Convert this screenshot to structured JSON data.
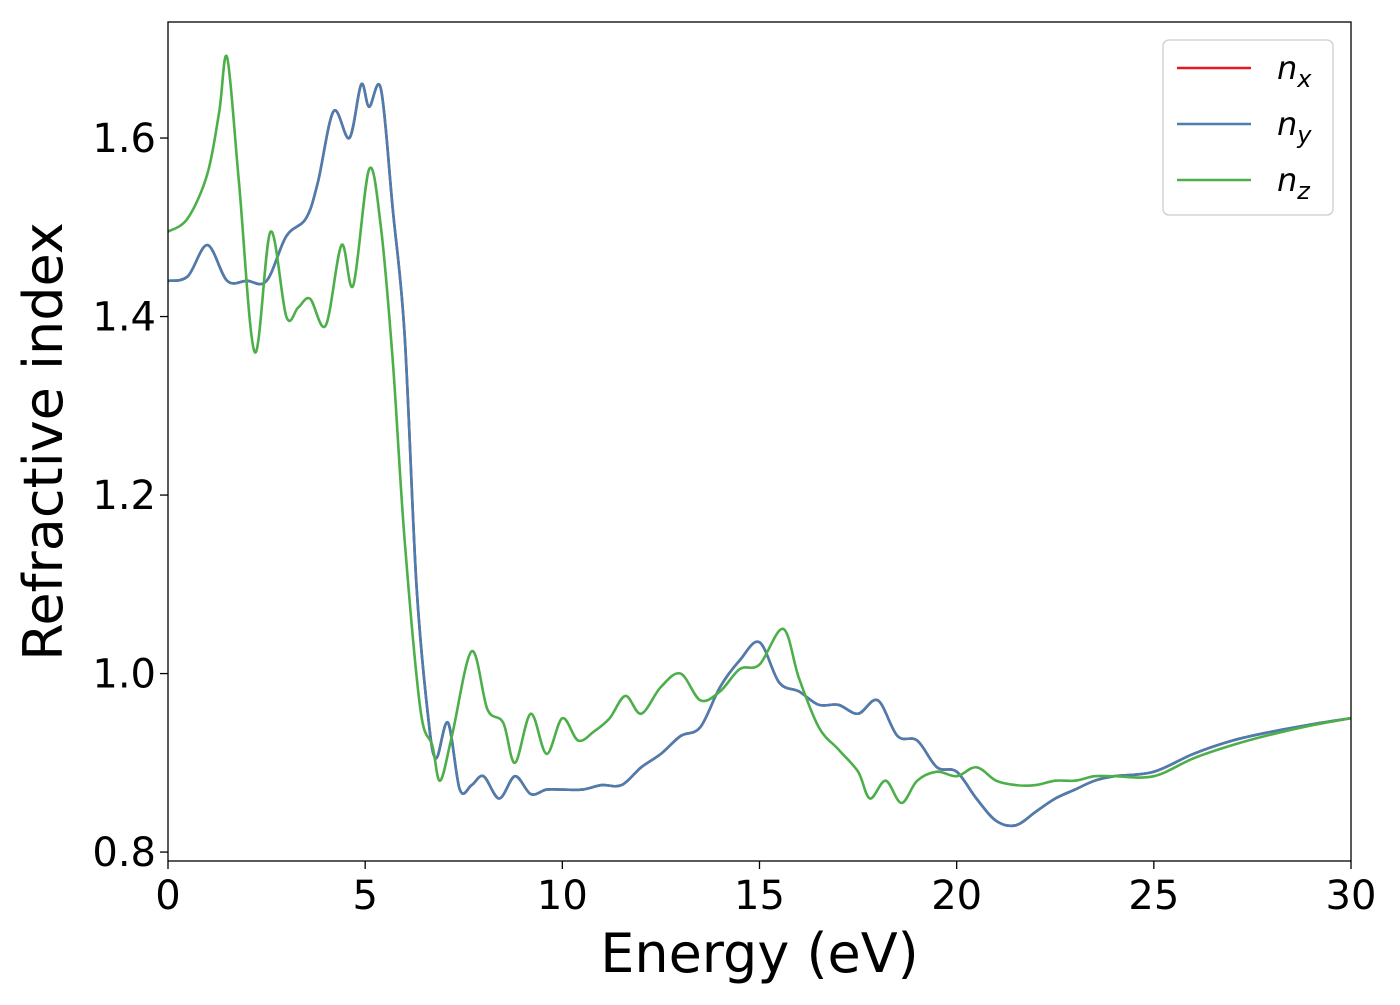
{
  "chart_data": {
    "type": "line",
    "title": "",
    "xlabel": "Energy (eV)",
    "ylabel": "Refractive index",
    "xlim": [
      0,
      30
    ],
    "ylim": [
      0.79,
      1.73
    ],
    "xticks": [
      0,
      5,
      10,
      15,
      20,
      25,
      30
    ],
    "xtick_labels": [
      "0",
      "5",
      "10",
      "15",
      "20",
      "25",
      "30"
    ],
    "yticks": [
      0.8,
      1.0,
      1.2,
      1.4,
      1.6
    ],
    "ytick_labels": [
      "0.8",
      "1.0",
      "1.2",
      "1.4",
      "1.6"
    ],
    "grid": false,
    "legend_position": "top-right",
    "series": [
      {
        "name": "n",
        "subscript": "x",
        "color": "#e41a1c",
        "x": [
          0,
          0.5,
          1.0,
          1.5,
          2.0,
          2.5,
          3.0,
          3.5,
          3.8,
          4.2,
          4.6,
          4.9,
          5.1,
          5.4,
          5.7,
          6.0,
          6.3,
          6.6,
          6.8,
          7.1,
          7.4,
          7.7,
          8.0,
          8.4,
          8.8,
          9.2,
          9.6,
          10.0,
          10.5,
          11.0,
          11.5,
          12.0,
          12.5,
          13.0,
          13.5,
          14.0,
          14.5,
          15.0,
          15.5,
          16.0,
          16.5,
          17.0,
          17.5,
          18.0,
          18.5,
          19.0,
          19.5,
          20.0,
          20.5,
          21.0,
          21.5,
          22.0,
          22.5,
          23.0,
          23.5,
          24.0,
          25.0,
          26.0,
          27.0,
          28.0,
          29.0,
          30.0
        ],
        "y": [
          1.44,
          1.445,
          1.48,
          1.44,
          1.44,
          1.44,
          1.49,
          1.51,
          1.55,
          1.63,
          1.6,
          1.66,
          1.635,
          1.655,
          1.52,
          1.38,
          1.1,
          0.95,
          0.905,
          0.945,
          0.87,
          0.875,
          0.885,
          0.86,
          0.885,
          0.865,
          0.87,
          0.87,
          0.87,
          0.875,
          0.875,
          0.895,
          0.91,
          0.93,
          0.94,
          0.985,
          1.015,
          1.035,
          0.99,
          0.98,
          0.965,
          0.965,
          0.955,
          0.97,
          0.93,
          0.925,
          0.895,
          0.89,
          0.86,
          0.835,
          0.83,
          0.845,
          0.86,
          0.87,
          0.88,
          0.885,
          0.89,
          0.91,
          0.925,
          0.935,
          0.943,
          0.95
        ]
      },
      {
        "name": "n",
        "subscript": "y",
        "color": "#4a7eb0",
        "x": [
          0,
          0.5,
          1.0,
          1.5,
          2.0,
          2.5,
          3.0,
          3.5,
          3.8,
          4.2,
          4.6,
          4.9,
          5.1,
          5.4,
          5.7,
          6.0,
          6.3,
          6.6,
          6.8,
          7.1,
          7.4,
          7.7,
          8.0,
          8.4,
          8.8,
          9.2,
          9.6,
          10.0,
          10.5,
          11.0,
          11.5,
          12.0,
          12.5,
          13.0,
          13.5,
          14.0,
          14.5,
          15.0,
          15.5,
          16.0,
          16.5,
          17.0,
          17.5,
          18.0,
          18.5,
          19.0,
          19.5,
          20.0,
          20.5,
          21.0,
          21.5,
          22.0,
          22.5,
          23.0,
          23.5,
          24.0,
          25.0,
          26.0,
          27.0,
          28.0,
          29.0,
          30.0
        ],
        "y": [
          1.44,
          1.445,
          1.48,
          1.44,
          1.44,
          1.44,
          1.49,
          1.51,
          1.55,
          1.63,
          1.6,
          1.66,
          1.635,
          1.655,
          1.52,
          1.38,
          1.1,
          0.95,
          0.905,
          0.945,
          0.87,
          0.875,
          0.885,
          0.86,
          0.885,
          0.865,
          0.87,
          0.87,
          0.87,
          0.875,
          0.875,
          0.895,
          0.91,
          0.93,
          0.94,
          0.985,
          1.015,
          1.035,
          0.99,
          0.98,
          0.965,
          0.965,
          0.955,
          0.97,
          0.93,
          0.925,
          0.895,
          0.89,
          0.86,
          0.835,
          0.83,
          0.845,
          0.86,
          0.87,
          0.88,
          0.885,
          0.89,
          0.91,
          0.925,
          0.935,
          0.943,
          0.95
        ]
      },
      {
        "name": "n",
        "subscript": "z",
        "color": "#4daf4a",
        "x": [
          0,
          0.5,
          1.0,
          1.3,
          1.5,
          1.8,
          2.2,
          2.6,
          3.0,
          3.3,
          3.6,
          4.0,
          4.4,
          4.7,
          5.1,
          5.4,
          5.7,
          6.0,
          6.4,
          6.7,
          6.9,
          7.2,
          7.7,
          8.1,
          8.5,
          8.8,
          9.2,
          9.6,
          10.0,
          10.4,
          10.8,
          11.2,
          11.6,
          12.0,
          12.5,
          13.0,
          13.5,
          14.0,
          14.5,
          15.0,
          15.6,
          16.0,
          16.5,
          17.0,
          17.5,
          17.8,
          18.2,
          18.6,
          19.0,
          19.5,
          20.0,
          20.5,
          21.0,
          21.5,
          22.0,
          22.5,
          23.0,
          23.5,
          24.0,
          25.0,
          26.0,
          27.0,
          28.0,
          29.0,
          30.0
        ],
        "y": [
          1.495,
          1.51,
          1.56,
          1.63,
          1.69,
          1.55,
          1.36,
          1.495,
          1.4,
          1.41,
          1.42,
          1.39,
          1.48,
          1.435,
          1.565,
          1.5,
          1.35,
          1.15,
          0.96,
          0.92,
          0.88,
          0.93,
          1.025,
          0.96,
          0.945,
          0.9,
          0.955,
          0.91,
          0.95,
          0.925,
          0.935,
          0.95,
          0.975,
          0.955,
          0.985,
          1.0,
          0.97,
          0.98,
          1.005,
          1.01,
          1.05,
          0.995,
          0.94,
          0.915,
          0.89,
          0.86,
          0.88,
          0.855,
          0.88,
          0.89,
          0.885,
          0.895,
          0.88,
          0.875,
          0.875,
          0.88,
          0.88,
          0.885,
          0.885,
          0.885,
          0.905,
          0.92,
          0.932,
          0.942,
          0.95
        ]
      }
    ]
  }
}
